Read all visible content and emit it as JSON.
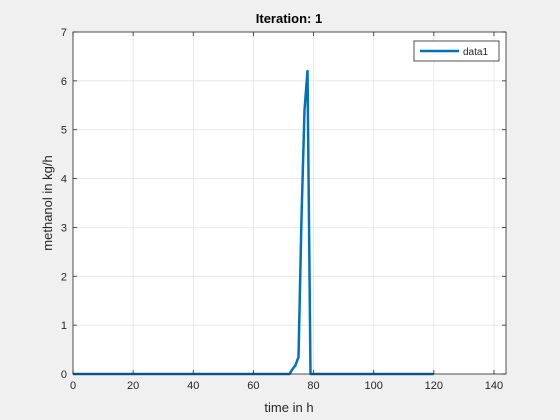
{
  "chart_data": {
    "type": "line",
    "title": "Iteration: 1",
    "xlabel": "time in h",
    "ylabel": "methanol in kg/h",
    "xlim": [
      0,
      144
    ],
    "ylim": [
      0,
      7
    ],
    "xticks": [
      0,
      20,
      40,
      60,
      80,
      100,
      120,
      140
    ],
    "yticks": [
      0,
      1,
      2,
      3,
      4,
      5,
      6,
      7
    ],
    "grid": true,
    "legend_position": "top-right",
    "series": [
      {
        "name": "data1",
        "color": "#0072BD",
        "x": [
          0,
          72,
          73,
          74,
          75,
          76,
          77,
          78,
          79,
          80,
          120
        ],
        "y": [
          0,
          0,
          0.1,
          0.18,
          0.35,
          3.2,
          5.4,
          6.2,
          0,
          0,
          0
        ]
      }
    ]
  },
  "colors": {
    "figure_background": "#f0f0f0",
    "axes_background": "#ffffff",
    "grid": "#dfdfdf",
    "axis": "#262626"
  }
}
